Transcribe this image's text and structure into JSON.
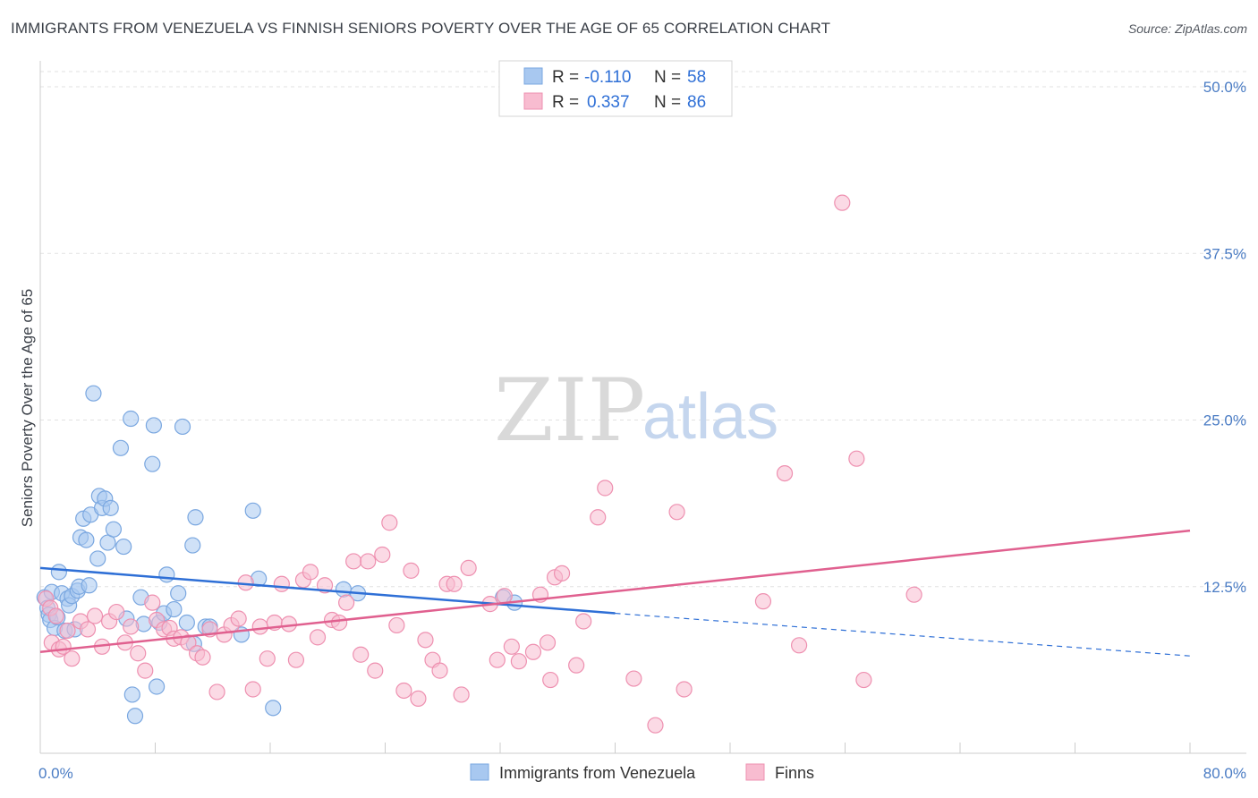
{
  "title": "IMMIGRANTS FROM VENEZUELA VS FINNISH SENIORS POVERTY OVER THE AGE OF 65 CORRELATION CHART",
  "source": "Source: ZipAtlas.com",
  "watermark": {
    "zip": "ZIP",
    "atlas": "atlas"
  },
  "legend_top": [
    {
      "r_label": "R =",
      "r_value": "-0.110",
      "n_label": "N =",
      "n_value": "58",
      "color": "#a8c8f0",
      "stroke": "#7aa7e0"
    },
    {
      "r_label": "R =",
      "r_value": "0.337",
      "n_label": "N =",
      "n_value": "86",
      "color": "#f8bcd0",
      "stroke": "#ee90b0"
    }
  ],
  "legend_bottom": [
    {
      "label": "Immigrants from Venezuela",
      "color": "#a8c8f0",
      "stroke": "#7aa7e0"
    },
    {
      "label": "Finns",
      "color": "#f8bcd0",
      "stroke": "#ee90b0"
    }
  ],
  "chart_data": {
    "type": "scatter",
    "title": "IMMIGRANTS FROM VENEZUELA VS FINNISH SENIORS POVERTY OVER THE AGE OF 65 CORRELATION CHART",
    "xlabel": "",
    "ylabel": "Seniors Poverty Over the Age of 65",
    "xlim": [
      0,
      80
    ],
    "ylim": [
      0,
      50
    ],
    "x_tick_labels": [
      "0.0%",
      "80.0%"
    ],
    "y_ticks": [
      12.5,
      25.0,
      37.5,
      50.0
    ],
    "y_tick_labels": [
      "12.5%",
      "25.0%",
      "37.5%",
      "50.0%"
    ],
    "grid": "horizontal-dashed",
    "legend_position": "top-center",
    "series": [
      {
        "name": "Immigrants from Venezuela",
        "color": "#a8c8f0",
        "stroke": "#7aa7e0",
        "line_color": "#2e6fd6",
        "trend": {
          "x0": 0,
          "y0": 13.9,
          "x1": 40,
          "y1": 10.5,
          "dashed_to_x": 80,
          "dashed_to_y": 7.3
        },
        "points": [
          [
            0.3,
            11.7
          ],
          [
            0.5,
            10.9
          ],
          [
            0.6,
            10.4
          ],
          [
            0.7,
            10.0
          ],
          [
            0.8,
            12.1
          ],
          [
            1.0,
            9.4
          ],
          [
            1.2,
            10.2
          ],
          [
            1.3,
            13.6
          ],
          [
            1.5,
            12.0
          ],
          [
            1.7,
            9.2
          ],
          [
            1.9,
            11.6
          ],
          [
            2.0,
            11.1
          ],
          [
            2.2,
            11.8
          ],
          [
            2.4,
            9.3
          ],
          [
            2.6,
            12.2
          ],
          [
            2.7,
            12.5
          ],
          [
            2.8,
            16.2
          ],
          [
            3.0,
            17.6
          ],
          [
            3.2,
            16.0
          ],
          [
            3.4,
            12.6
          ],
          [
            3.5,
            17.9
          ],
          [
            3.7,
            27.0
          ],
          [
            4.0,
            14.6
          ],
          [
            4.1,
            19.3
          ],
          [
            4.3,
            18.4
          ],
          [
            4.5,
            19.1
          ],
          [
            4.7,
            15.8
          ],
          [
            4.9,
            18.4
          ],
          [
            5.1,
            16.8
          ],
          [
            5.6,
            22.9
          ],
          [
            5.8,
            15.5
          ],
          [
            6.0,
            10.1
          ],
          [
            6.3,
            25.1
          ],
          [
            6.4,
            4.4
          ],
          [
            6.6,
            2.8
          ],
          [
            7.0,
            11.7
          ],
          [
            7.2,
            9.7
          ],
          [
            7.8,
            21.7
          ],
          [
            7.9,
            24.6
          ],
          [
            8.1,
            5.0
          ],
          [
            8.3,
            9.8
          ],
          [
            8.6,
            10.5
          ],
          [
            8.8,
            13.4
          ],
          [
            9.3,
            10.8
          ],
          [
            9.6,
            12.0
          ],
          [
            9.9,
            24.5
          ],
          [
            10.2,
            9.8
          ],
          [
            10.6,
            15.6
          ],
          [
            10.7,
            8.2
          ],
          [
            10.8,
            17.7
          ],
          [
            11.5,
            9.5
          ],
          [
            11.8,
            9.5
          ],
          [
            14.0,
            8.9
          ],
          [
            14.8,
            18.2
          ],
          [
            15.2,
            13.1
          ],
          [
            16.2,
            3.4
          ],
          [
            21.1,
            12.3
          ],
          [
            22.1,
            12.0
          ],
          [
            32.2,
            11.7
          ],
          [
            33.0,
            11.3
          ]
        ]
      },
      {
        "name": "Finns",
        "color": "#f8bcd0",
        "stroke": "#ee90b0",
        "line_color": "#e0608f",
        "trend": {
          "x0": 0,
          "y0": 7.6,
          "x1": 80,
          "y1": 16.7
        },
        "points": [
          [
            0.4,
            11.6
          ],
          [
            0.7,
            10.9
          ],
          [
            0.8,
            8.3
          ],
          [
            1.1,
            10.3
          ],
          [
            1.3,
            7.8
          ],
          [
            1.6,
            8.0
          ],
          [
            1.9,
            9.2
          ],
          [
            2.2,
            7.1
          ],
          [
            2.8,
            9.9
          ],
          [
            3.3,
            9.3
          ],
          [
            3.8,
            10.3
          ],
          [
            4.3,
            8.0
          ],
          [
            4.8,
            9.9
          ],
          [
            5.3,
            10.6
          ],
          [
            5.9,
            8.3
          ],
          [
            6.3,
            9.5
          ],
          [
            6.8,
            7.5
          ],
          [
            7.3,
            6.2
          ],
          [
            7.8,
            11.3
          ],
          [
            8.1,
            10.0
          ],
          [
            8.6,
            9.3
          ],
          [
            9.0,
            9.4
          ],
          [
            9.3,
            8.6
          ],
          [
            9.8,
            8.7
          ],
          [
            10.3,
            8.3
          ],
          [
            10.9,
            7.5
          ],
          [
            11.3,
            7.2
          ],
          [
            11.8,
            9.3
          ],
          [
            12.3,
            4.6
          ],
          [
            12.8,
            8.9
          ],
          [
            13.3,
            9.6
          ],
          [
            13.8,
            10.1
          ],
          [
            14.3,
            12.8
          ],
          [
            14.8,
            4.8
          ],
          [
            15.3,
            9.5
          ],
          [
            15.8,
            7.1
          ],
          [
            16.3,
            9.8
          ],
          [
            16.8,
            12.7
          ],
          [
            17.3,
            9.7
          ],
          [
            17.8,
            7.0
          ],
          [
            18.3,
            13.0
          ],
          [
            18.8,
            13.6
          ],
          [
            19.3,
            8.7
          ],
          [
            19.8,
            12.6
          ],
          [
            20.3,
            10.0
          ],
          [
            20.8,
            9.8
          ],
          [
            21.3,
            11.3
          ],
          [
            21.8,
            14.4
          ],
          [
            22.3,
            7.4
          ],
          [
            22.8,
            14.4
          ],
          [
            23.3,
            6.2
          ],
          [
            23.8,
            14.9
          ],
          [
            24.3,
            17.3
          ],
          [
            24.8,
            9.6
          ],
          [
            25.3,
            4.7
          ],
          [
            25.8,
            13.7
          ],
          [
            26.3,
            4.1
          ],
          [
            26.8,
            8.5
          ],
          [
            27.3,
            7.0
          ],
          [
            27.8,
            6.2
          ],
          [
            28.3,
            12.7
          ],
          [
            28.8,
            12.7
          ],
          [
            29.3,
            4.4
          ],
          [
            29.8,
            13.9
          ],
          [
            31.3,
            11.2
          ],
          [
            31.8,
            7.0
          ],
          [
            32.3,
            11.8
          ],
          [
            32.8,
            8.0
          ],
          [
            33.3,
            6.9
          ],
          [
            34.3,
            7.6
          ],
          [
            34.8,
            11.9
          ],
          [
            35.3,
            8.3
          ],
          [
            35.5,
            5.5
          ],
          [
            35.8,
            13.2
          ],
          [
            36.3,
            13.5
          ],
          [
            37.3,
            6.6
          ],
          [
            37.8,
            9.9
          ],
          [
            38.8,
            17.7
          ],
          [
            39.3,
            19.9
          ],
          [
            41.3,
            5.6
          ],
          [
            42.8,
            2.1
          ],
          [
            44.3,
            18.1
          ],
          [
            44.8,
            4.8
          ],
          [
            50.3,
            11.4
          ],
          [
            51.8,
            21.0
          ],
          [
            52.8,
            8.1
          ],
          [
            55.8,
            41.3
          ],
          [
            56.8,
            22.1
          ],
          [
            57.3,
            5.5
          ],
          [
            60.8,
            11.9
          ]
        ]
      }
    ]
  }
}
